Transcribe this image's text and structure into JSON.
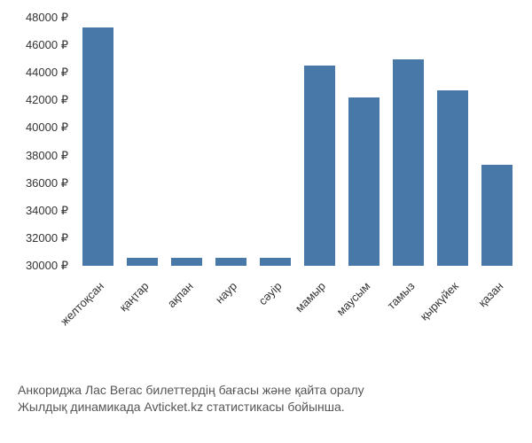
{
  "chart": {
    "type": "bar",
    "categories": [
      "желтоқсан",
      "қаңтар",
      "ақпан",
      "наур",
      "сәуір",
      "мамыр",
      "маусым",
      "тамыз",
      "қыркүйек",
      "қазан"
    ],
    "values": [
      47300,
      30600,
      30600,
      30600,
      30600,
      44500,
      42200,
      45000,
      42700,
      37300
    ],
    "bar_color": "#4878a8",
    "y_min": 30000,
    "y_max": 48000,
    "y_tick_step": 2000,
    "y_suffix": " ₽",
    "y_ticks": [
      30000,
      32000,
      34000,
      36000,
      38000,
      40000,
      42000,
      44000,
      46000,
      48000
    ],
    "bar_width_ratio": 0.7,
    "background_color": "#ffffff",
    "text_color": "#333333",
    "tick_fontsize": 13,
    "x_label_rotation": -45
  },
  "caption": {
    "line1": "Анкориджа Лас Вегас билеттердің бағасы және қайта оралу",
    "line2": "Жылдық динамикада Avticket.kz статистикасы бойынша.",
    "color": "#555555",
    "fontsize": 14
  }
}
